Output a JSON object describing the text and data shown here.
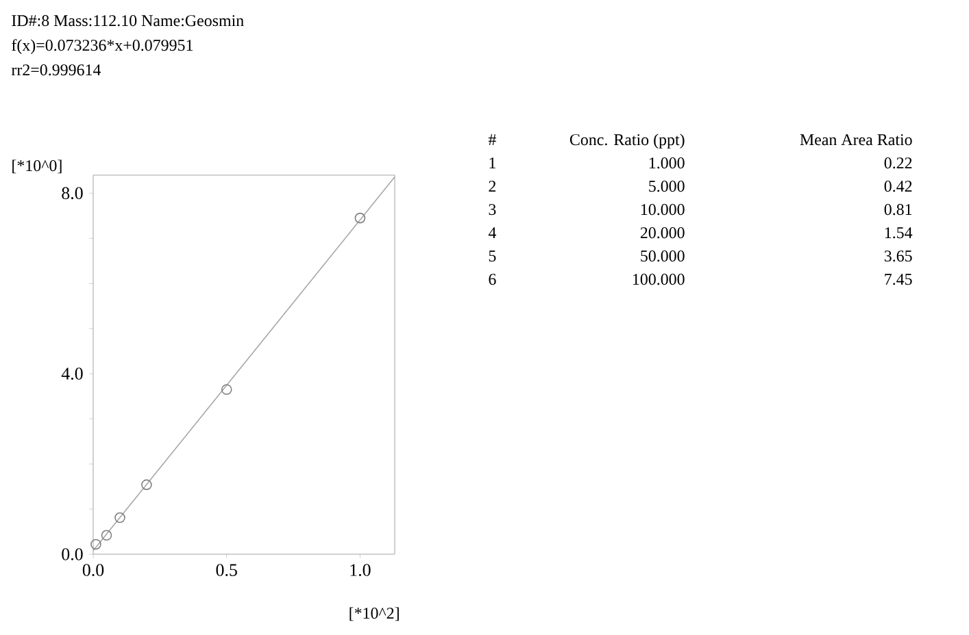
{
  "chart_data": {
    "type": "scatter",
    "title": "ID#:8  Mass:112.10  Name:Geosmin",
    "subtitle": "f(x)=0.073236*x+0.079951",
    "annotations": [
      "rr2=0.999614",
      "#",
      "Conc. Ratio (ppt)",
      "Mean Area Ratio",
      "1",
      "1.000",
      "0.22",
      "2",
      "5.000",
      "0.42",
      "3",
      "10.000",
      "0.81",
      "4",
      "20.000",
      "1.54",
      "5",
      "50.000",
      "3.65",
      "6",
      "100.000",
      "7.45"
    ],
    "xlabel": "[*10^2]",
    "ylabel": "[*10^0]",
    "xlim": [
      0,
      1.13
    ],
    "ylim": [
      0,
      8.4
    ],
    "xticks": [
      {
        "value": 0,
        "label": "0.0"
      },
      {
        "value": 0.5,
        "label": "0.5"
      },
      {
        "value": 1,
        "label": "1.0"
      }
    ],
    "yticks": [
      {
        "value": 0,
        "label": "0.0"
      },
      {
        "value": 1,
        "label": null
      },
      {
        "value": 2,
        "label": null
      },
      {
        "value": 3,
        "label": null
      },
      {
        "value": 4,
        "label": "4.0"
      },
      {
        "value": 5,
        "label": null
      },
      {
        "value": 6,
        "label": null
      },
      {
        "value": 7,
        "label": null
      },
      {
        "value": 8,
        "label": "8.0"
      }
    ],
    "x": [
      0.01,
      0.05,
      0.1,
      0.2,
      0.5,
      1.0
    ],
    "series": [
      {
        "color": "#7f7f7f",
        "marker": "circle",
        "values": [
          0.22,
          0.42,
          0.81,
          1.54,
          3.65,
          7.45
        ]
      },
      {
        "type": "line",
        "color": "#a6a6a6",
        "x": [
          0,
          1.13
        ],
        "values": [
          0.08,
          8.36
        ]
      }
    ]
  }
}
